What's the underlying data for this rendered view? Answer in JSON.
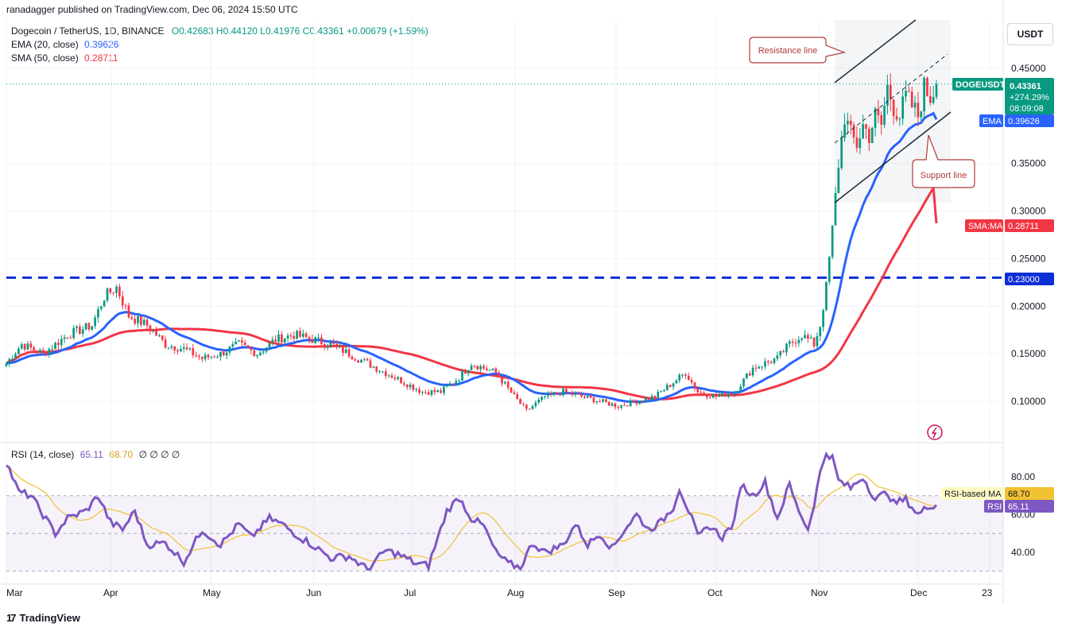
{
  "publisher": "ranadagger published on TradingView.com, Dec 06, 2024 15:50 UTC",
  "legend": {
    "symbol": "Dogecoin / TetherUS, 1D, BINANCE",
    "ohlc": "O0.42683 H0.44120 L0.41976 C0.43361 +0.00679 (+1.59%)",
    "ema_label": "EMA (20, close)",
    "ema_value": "0.39626",
    "sma_label": "SMA (50, close)",
    "sma_value": "0.28711"
  },
  "rsi_legend": {
    "label": "RSI (14, close)",
    "v1": "65.11",
    "v2": "68.70",
    "rest": "∅ ∅ ∅ ∅"
  },
  "currency": "USDT",
  "footer": "TradingView",
  "annotations": {
    "resistance": "Resistance line",
    "support": "Support line"
  },
  "price_tags": {
    "symbol": "DOGEUSDT",
    "price": "0.43361",
    "change": "+274.29%",
    "countdown": "08:09:08",
    "ema_tag": "EMA",
    "ema_val": "0.39626",
    "sma_tag": "SMA:MA",
    "sma_val": "0.28711",
    "level_val": "0.23000",
    "rsi_ma_tag": "RSI-based MA",
    "rsi_ma_val": "68.70",
    "rsi_tag": "RSI",
    "rsi_val": "65.11"
  },
  "colors": {
    "up": "#089981",
    "down": "#f23645",
    "ema": "#2962ff",
    "sma": "#f23645",
    "level": "#0d2fd6",
    "rsi": "#7e57c2",
    "rsi_ma": "#f1c232",
    "annot": "#b23a3a"
  },
  "chart_data": {
    "type": "candlestick",
    "y_ticks": [
      "0.45000",
      "0.35000",
      "0.30000",
      "0.25000",
      "0.20000",
      "0.15000",
      "0.10000"
    ],
    "y_tick_values": [
      0.45,
      0.35,
      0.3,
      0.25,
      0.2,
      0.15,
      0.1
    ],
    "x_ticks": [
      "Mar",
      "Apr",
      "May",
      "Jun",
      "Jul",
      "Aug",
      "Sep",
      "Oct",
      "Nov",
      "Dec",
      "23"
    ],
    "horizontal_level": 0.23,
    "last_price": 0.43361,
    "ema20_last": 0.39626,
    "sma50_last": 0.28711,
    "close_waypoints": [
      [
        0,
        0.14
      ],
      [
        5,
        0.16
      ],
      [
        12,
        0.15
      ],
      [
        20,
        0.17
      ],
      [
        28,
        0.18
      ],
      [
        32,
        0.21
      ],
      [
        36,
        0.22
      ],
      [
        40,
        0.19
      ],
      [
        46,
        0.18
      ],
      [
        52,
        0.16
      ],
      [
        58,
        0.155
      ],
      [
        64,
        0.145
      ],
      [
        70,
        0.15
      ],
      [
        76,
        0.16
      ],
      [
        82,
        0.15
      ],
      [
        88,
        0.165
      ],
      [
        94,
        0.17
      ],
      [
        100,
        0.165
      ],
      [
        106,
        0.16
      ],
      [
        112,
        0.15
      ],
      [
        118,
        0.14
      ],
      [
        124,
        0.13
      ],
      [
        130,
        0.12
      ],
      [
        136,
        0.11
      ],
      [
        142,
        0.11
      ],
      [
        148,
        0.125
      ],
      [
        152,
        0.14
      ],
      [
        156,
        0.135
      ],
      [
        160,
        0.13
      ],
      [
        166,
        0.105
      ],
      [
        170,
        0.09
      ],
      [
        176,
        0.105
      ],
      [
        182,
        0.11
      ],
      [
        188,
        0.105
      ],
      [
        194,
        0.1
      ],
      [
        200,
        0.095
      ],
      [
        206,
        0.1
      ],
      [
        212,
        0.105
      ],
      [
        218,
        0.12
      ],
      [
        222,
        0.13
      ],
      [
        226,
        0.11
      ],
      [
        232,
        0.105
      ],
      [
        238,
        0.11
      ],
      [
        244,
        0.135
      ],
      [
        248,
        0.14
      ],
      [
        252,
        0.145
      ],
      [
        256,
        0.16
      ],
      [
        260,
        0.17
      ],
      [
        264,
        0.16
      ],
      [
        266,
        0.18
      ],
      [
        268,
        0.22
      ],
      [
        270,
        0.28
      ],
      [
        272,
        0.35
      ],
      [
        274,
        0.4
      ],
      [
        276,
        0.38
      ],
      [
        278,
        0.37
      ],
      [
        280,
        0.39
      ],
      [
        282,
        0.38
      ],
      [
        284,
        0.4
      ],
      [
        286,
        0.39
      ],
      [
        288,
        0.43
      ],
      [
        290,
        0.41
      ],
      [
        292,
        0.4
      ],
      [
        294,
        0.42
      ],
      [
        296,
        0.41
      ],
      [
        298,
        0.4
      ],
      [
        300,
        0.43
      ],
      [
        302,
        0.42
      ],
      [
        304,
        0.433
      ]
    ],
    "rsi": {
      "y_ticks": [
        "80.00",
        "60.00",
        "40.00"
      ],
      "y_tick_values": [
        80,
        60,
        40
      ],
      "band": [
        30,
        70
      ],
      "waypoints": [
        [
          0,
          88
        ],
        [
          4,
          72
        ],
        [
          8,
          70
        ],
        [
          12,
          60
        ],
        [
          16,
          50
        ],
        [
          20,
          58
        ],
        [
          26,
          62
        ],
        [
          30,
          70
        ],
        [
          34,
          56
        ],
        [
          38,
          52
        ],
        [
          42,
          62
        ],
        [
          46,
          44
        ],
        [
          52,
          45
        ],
        [
          58,
          35
        ],
        [
          64,
          52
        ],
        [
          70,
          44
        ],
        [
          76,
          55
        ],
        [
          80,
          48
        ],
        [
          86,
          58
        ],
        [
          90,
          55
        ],
        [
          96,
          48
        ],
        [
          100,
          44
        ],
        [
          106,
          37
        ],
        [
          112,
          38
        ],
        [
          118,
          31
        ],
        [
          124,
          41
        ],
        [
          128,
          39
        ],
        [
          134,
          34
        ],
        [
          138,
          33
        ],
        [
          144,
          62
        ],
        [
          148,
          69
        ],
        [
          152,
          58
        ],
        [
          156,
          54
        ],
        [
          160,
          40
        ],
        [
          164,
          34
        ],
        [
          168,
          32
        ],
        [
          172,
          45
        ],
        [
          176,
          40
        ],
        [
          182,
          44
        ],
        [
          186,
          55
        ],
        [
          190,
          44
        ],
        [
          194,
          50
        ],
        [
          198,
          42
        ],
        [
          202,
          52
        ],
        [
          206,
          60
        ],
        [
          210,
          52
        ],
        [
          214,
          56
        ],
        [
          218,
          64
        ],
        [
          220,
          74
        ],
        [
          224,
          58
        ],
        [
          226,
          48
        ],
        [
          230,
          54
        ],
        [
          234,
          48
        ],
        [
          238,
          56
        ],
        [
          240,
          76
        ],
        [
          244,
          70
        ],
        [
          248,
          77
        ],
        [
          252,
          58
        ],
        [
          256,
          76
        ],
        [
          258,
          66
        ],
        [
          262,
          52
        ],
        [
          264,
          66
        ],
        [
          266,
          82
        ],
        [
          268,
          93
        ],
        [
          270,
          90
        ],
        [
          272,
          78
        ],
        [
          276,
          74
        ],
        [
          280,
          80
        ],
        [
          284,
          68
        ],
        [
          288,
          72
        ],
        [
          290,
          66
        ],
        [
          294,
          68
        ],
        [
          298,
          60
        ],
        [
          302,
          65
        ],
        [
          304,
          65.11
        ]
      ]
    }
  }
}
